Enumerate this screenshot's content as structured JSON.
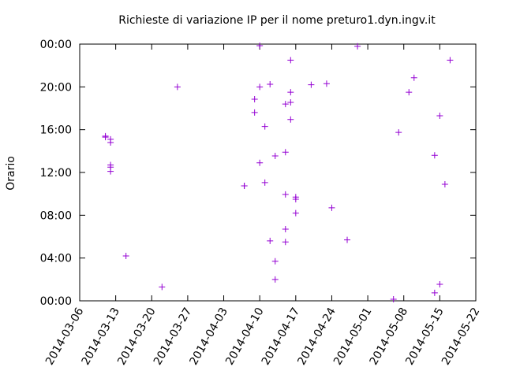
{
  "chart_data": {
    "type": "scatter",
    "title": "Richieste di variazione IP per il nome preturo1.dyn.ingv.it",
    "y_label": "Orario",
    "color": "#9400d3",
    "x": [
      "2014-03-11",
      "2014-03-11",
      "2014-03-12",
      "2014-03-12",
      "2014-03-12",
      "2014-03-12",
      "2014-03-12",
      "2014-03-15",
      "2014-03-22",
      "2014-03-25",
      "2014-04-07",
      "2014-04-07",
      "2014-04-09",
      "2014-04-09",
      "2014-04-10",
      "2014-04-10",
      "2014-04-10",
      "2014-04-11",
      "2014-04-11",
      "2014-04-12",
      "2014-04-12",
      "2014-04-13",
      "2014-04-13",
      "2014-04-13",
      "2014-04-15",
      "2014-04-15",
      "2014-04-15",
      "2014-04-15",
      "2014-04-15",
      "2014-04-16",
      "2014-04-16",
      "2014-04-16",
      "2014-04-16",
      "2014-04-17",
      "2014-04-17",
      "2014-04-17",
      "2014-04-20",
      "2014-04-23",
      "2014-04-24",
      "2014-04-27",
      "2014-04-29",
      "2014-05-06",
      "2014-05-07",
      "2014-05-09",
      "2014-05-10",
      "2014-05-14",
      "2014-05-14",
      "2014-05-15",
      "2014-05-15",
      "2014-05-16",
      "2014-05-17"
    ],
    "values": [
      15.3,
      15.4,
      15.1,
      14.8,
      12.7,
      12.5,
      12.1,
      4.2,
      1.3,
      20.0,
      10.75,
      10.75,
      18.85,
      17.6,
      23.85,
      20.0,
      12.9,
      16.3,
      11.05,
      20.25,
      5.6,
      13.55,
      3.7,
      2.0,
      18.4,
      13.9,
      9.95,
      6.7,
      5.5,
      22.5,
      19.5,
      18.55,
      16.95,
      9.7,
      9.5,
      8.2,
      20.2,
      20.3,
      8.7,
      5.7,
      23.8,
      0.15,
      15.75,
      19.5,
      20.85,
      13.6,
      0.75,
      17.3,
      1.55,
      10.9,
      22.5
    ],
    "xlim": [
      "2014-03-06",
      "2014-05-22"
    ],
    "xticks": [
      "2014-03-06",
      "2014-03-13",
      "2014-03-20",
      "2014-03-27",
      "2014-04-03",
      "2014-04-10",
      "2014-04-17",
      "2014-04-24",
      "2014-05-01",
      "2014-05-08",
      "2014-05-15",
      "2014-05-22"
    ],
    "ylim": [
      0,
      24
    ],
    "yticks": [
      {
        "value": 0,
        "label": "00:00"
      },
      {
        "value": 4,
        "label": "04:00"
      },
      {
        "value": 8,
        "label": "08:00"
      },
      {
        "value": 12,
        "label": "12:00"
      },
      {
        "value": 16,
        "label": "16:00"
      },
      {
        "value": 20,
        "label": "20:00"
      },
      {
        "value": 24,
        "label": "00:00"
      }
    ]
  }
}
